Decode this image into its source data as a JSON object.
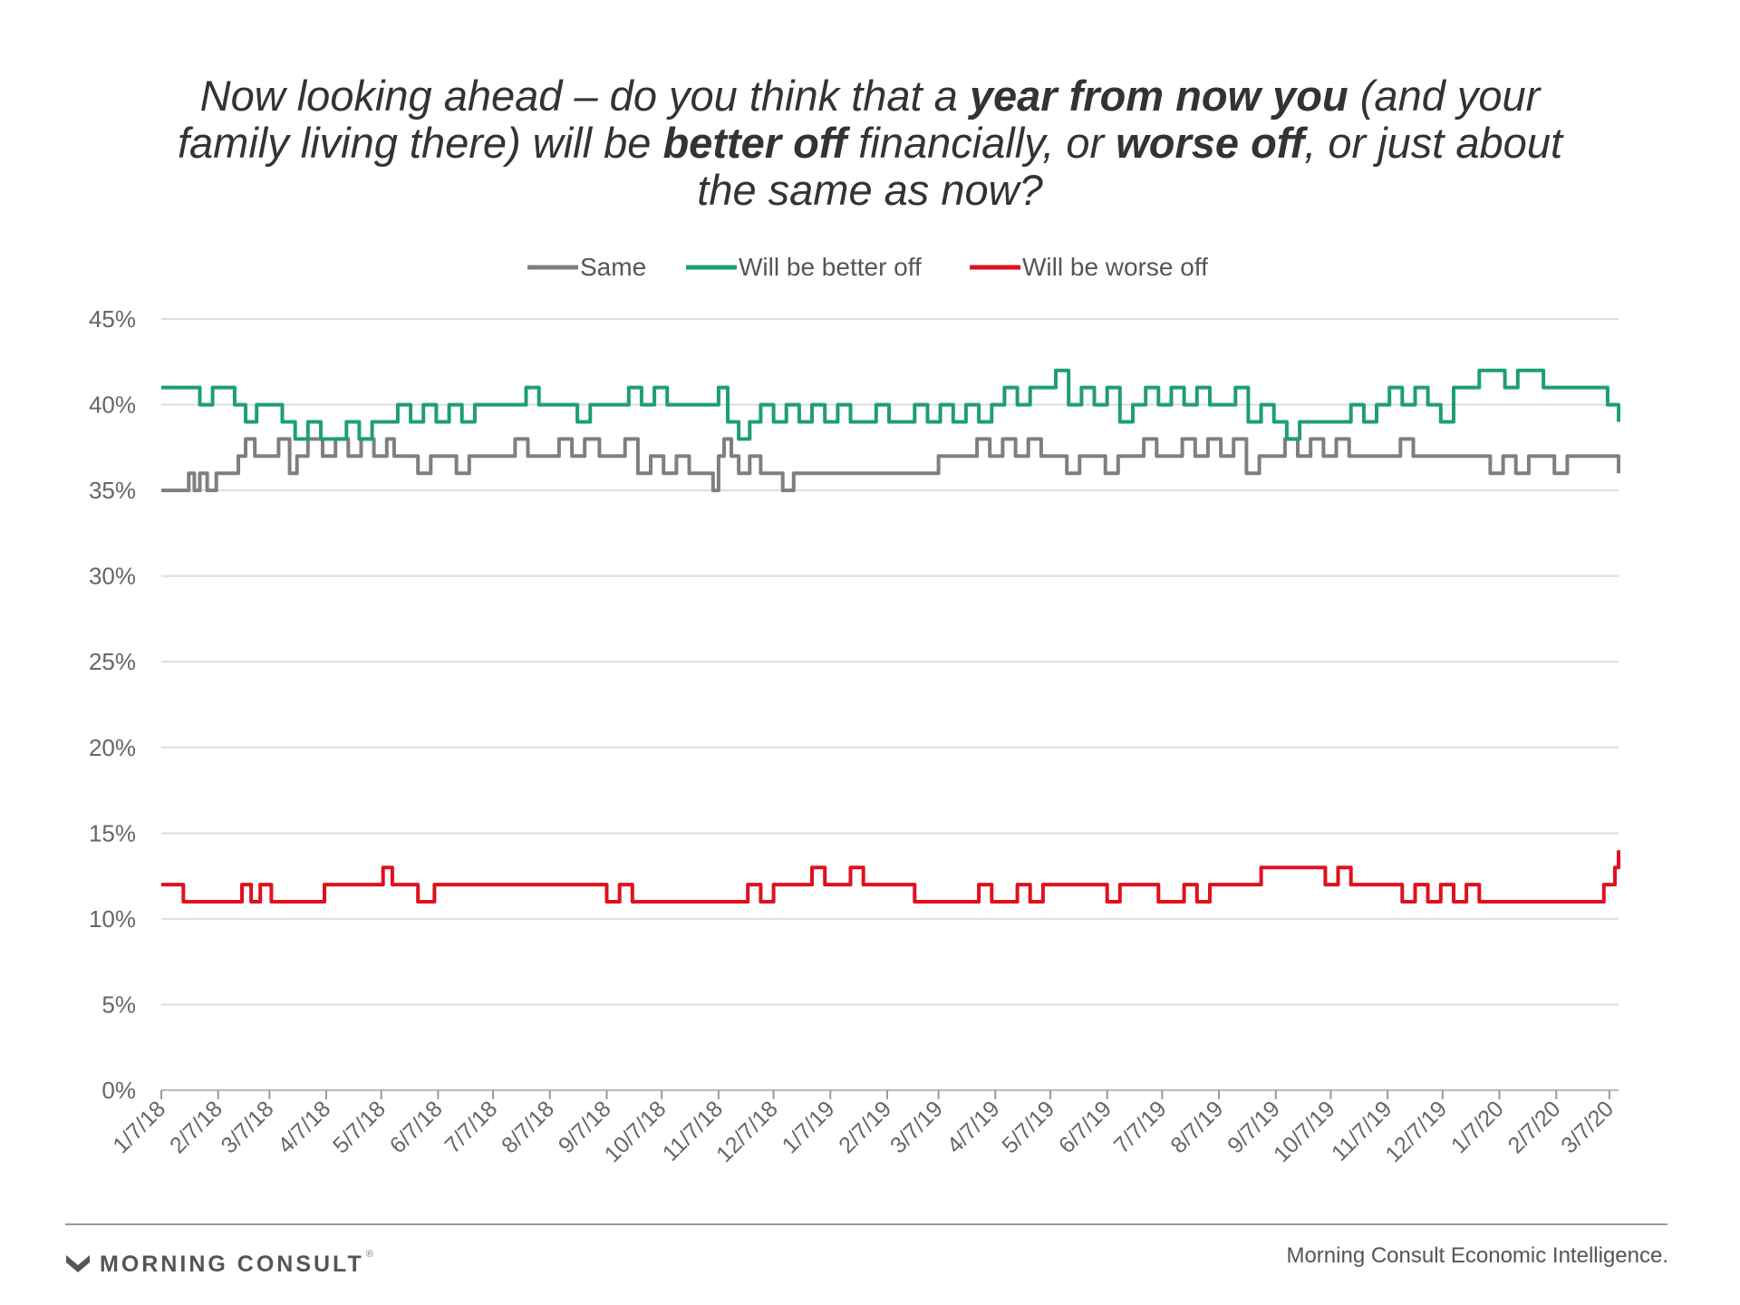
{
  "title_parts": [
    {
      "t": "Now looking ahead – do you think that a ",
      "b": false
    },
    {
      "t": "year from now you",
      "b": true
    },
    {
      "t": " (and your family living there) will be ",
      "b": false
    },
    {
      "t": "better off",
      "b": true
    },
    {
      "t": " financially, or ",
      "b": false
    },
    {
      "t": "worse off",
      "b": true
    },
    {
      "t": ", or just about the same as now?",
      "b": false
    }
  ],
  "footer": {
    "brand": "MORNING CONSULT",
    "source": "Morning Consult Economic Intelligence."
  },
  "colors": {
    "same": "#7f7f7f",
    "better": "#1e9e74",
    "worse": "#e0101e",
    "grid": "#dddddd",
    "axis_text": "#666666"
  },
  "chart_data": {
    "type": "line",
    "title": "Now looking ahead – do you think that a year from now you (and your family living there) will be better off financially, or worse off, or just about the same as now?",
    "legend_position": "top-center",
    "grid": true,
    "ylim": [
      0,
      45
    ],
    "yticks": [
      0,
      5,
      10,
      15,
      20,
      25,
      30,
      35,
      40,
      45
    ],
    "ytick_labels": [
      "0%",
      "5%",
      "10%",
      "15%",
      "20%",
      "25%",
      "30%",
      "35%",
      "40%",
      "45%"
    ],
    "xlim": [
      "2018-01-07",
      "2020-03-12"
    ],
    "xticks": [
      "2018-01-07",
      "2018-02-07",
      "2018-03-07",
      "2018-04-07",
      "2018-05-07",
      "2018-06-07",
      "2018-07-07",
      "2018-08-07",
      "2018-09-07",
      "2018-10-07",
      "2018-11-07",
      "2018-12-07",
      "2019-01-07",
      "2019-02-07",
      "2019-03-07",
      "2019-04-07",
      "2019-05-07",
      "2019-06-07",
      "2019-07-07",
      "2019-08-07",
      "2019-09-07",
      "2019-10-07",
      "2019-11-07",
      "2019-12-07",
      "2020-01-07",
      "2020-02-07",
      "2020-03-07"
    ],
    "xtick_labels": [
      "1/7/18",
      "2/7/18",
      "3/7/18",
      "4/7/18",
      "5/7/18",
      "6/7/18",
      "7/7/18",
      "8/7/18",
      "9/7/18",
      "10/7/18",
      "11/7/18",
      "12/7/18",
      "1/7/19",
      "2/7/19",
      "3/7/19",
      "4/7/19",
      "5/7/19",
      "6/7/19",
      "7/7/19",
      "8/7/19",
      "9/7/19",
      "10/7/19",
      "11/7/19",
      "12/7/19",
      "1/7/20",
      "2/7/20",
      "3/7/20"
    ],
    "series": [
      {
        "name": "Same",
        "color": "#7f7f7f",
        "x": [
          "2018-01-07",
          "2018-01-20",
          "2018-01-22",
          "2018-01-25",
          "2018-01-28",
          "2018-02-01",
          "2018-02-06",
          "2018-02-14",
          "2018-02-18",
          "2018-02-22",
          "2018-02-27",
          "2018-03-06",
          "2018-03-12",
          "2018-03-18",
          "2018-03-22",
          "2018-03-28",
          "2018-04-05",
          "2018-04-12",
          "2018-04-19",
          "2018-04-26",
          "2018-05-03",
          "2018-05-10",
          "2018-05-14",
          "2018-05-20",
          "2018-05-27",
          "2018-06-03",
          "2018-06-10",
          "2018-06-17",
          "2018-06-24",
          "2018-07-01",
          "2018-07-10",
          "2018-07-19",
          "2018-07-26",
          "2018-08-03",
          "2018-08-12",
          "2018-08-19",
          "2018-08-26",
          "2018-09-03",
          "2018-09-10",
          "2018-09-17",
          "2018-09-24",
          "2018-10-01",
          "2018-10-08",
          "2018-10-15",
          "2018-10-22",
          "2018-10-29",
          "2018-11-04",
          "2018-11-07",
          "2018-11-10",
          "2018-11-14",
          "2018-11-18",
          "2018-11-24",
          "2018-11-30",
          "2018-12-06",
          "2018-12-12",
          "2018-12-18",
          "2018-12-24",
          "2019-01-01",
          "2019-01-10",
          "2019-01-20",
          "2019-02-01",
          "2019-02-10",
          "2019-02-20",
          "2019-03-01",
          "2019-03-07",
          "2019-03-14",
          "2019-03-21",
          "2019-03-28",
          "2019-04-04",
          "2019-04-11",
          "2019-04-18",
          "2019-04-25",
          "2019-05-02",
          "2019-05-09",
          "2019-05-16",
          "2019-05-23",
          "2019-05-30",
          "2019-06-06",
          "2019-06-13",
          "2019-06-20",
          "2019-06-27",
          "2019-07-04",
          "2019-07-11",
          "2019-07-18",
          "2019-07-25",
          "2019-08-01",
          "2019-08-08",
          "2019-08-15",
          "2019-08-22",
          "2019-08-29",
          "2019-09-05",
          "2019-09-12",
          "2019-09-19",
          "2019-09-26",
          "2019-10-03",
          "2019-10-10",
          "2019-10-17",
          "2019-10-24",
          "2019-10-31",
          "2019-11-07",
          "2019-11-14",
          "2019-11-21",
          "2019-11-28",
          "2019-12-05",
          "2019-12-12",
          "2019-12-19",
          "2019-12-26",
          "2020-01-02",
          "2020-01-09",
          "2020-01-16",
          "2020-01-23",
          "2020-01-30",
          "2020-02-06",
          "2020-02-13",
          "2020-02-20",
          "2020-02-27",
          "2020-03-05",
          "2020-03-12"
        ],
        "values": [
          35,
          35,
          36,
          35,
          36,
          35,
          36,
          36,
          37,
          38,
          37,
          37,
          38,
          36,
          37,
          38,
          37,
          38,
          37,
          38,
          37,
          38,
          37,
          37,
          36,
          37,
          37,
          36,
          37,
          37,
          37,
          38,
          37,
          37,
          38,
          37,
          38,
          37,
          37,
          38,
          36,
          37,
          36,
          37,
          36,
          36,
          35,
          37,
          38,
          37,
          36,
          37,
          36,
          36,
          35,
          36,
          36,
          36,
          36,
          36,
          36,
          36,
          36,
          36,
          37,
          37,
          37,
          38,
          37,
          38,
          37,
          38,
          37,
          37,
          36,
          37,
          37,
          36,
          37,
          37,
          38,
          37,
          37,
          38,
          37,
          38,
          37,
          38,
          36,
          37,
          37,
          38,
          37,
          38,
          37,
          38,
          37,
          37,
          37,
          37,
          38,
          37,
          37,
          37,
          37,
          37,
          37,
          36,
          37,
          36,
          37,
          37,
          36,
          37,
          37,
          37,
          37,
          36
        ]
      },
      {
        "name": "Will be better off",
        "color": "#1e9e74",
        "x": [
          "2018-01-07",
          "2018-01-14",
          "2018-01-21",
          "2018-01-28",
          "2018-02-04",
          "2018-02-10",
          "2018-02-16",
          "2018-02-22",
          "2018-02-28",
          "2018-03-07",
          "2018-03-14",
          "2018-03-21",
          "2018-03-28",
          "2018-04-04",
          "2018-04-11",
          "2018-04-18",
          "2018-04-25",
          "2018-05-02",
          "2018-05-09",
          "2018-05-16",
          "2018-05-23",
          "2018-05-30",
          "2018-06-06",
          "2018-06-13",
          "2018-06-20",
          "2018-06-27",
          "2018-07-04",
          "2018-07-11",
          "2018-07-18",
          "2018-07-25",
          "2018-08-01",
          "2018-08-08",
          "2018-08-15",
          "2018-08-22",
          "2018-08-29",
          "2018-09-05",
          "2018-09-12",
          "2018-09-19",
          "2018-09-26",
          "2018-10-03",
          "2018-10-10",
          "2018-10-17",
          "2018-10-24",
          "2018-10-31",
          "2018-11-07",
          "2018-11-12",
          "2018-11-18",
          "2018-11-24",
          "2018-11-30",
          "2018-12-07",
          "2018-12-14",
          "2018-12-21",
          "2018-12-28",
          "2019-01-04",
          "2019-01-11",
          "2019-01-18",
          "2019-01-25",
          "2019-02-01",
          "2019-02-08",
          "2019-02-15",
          "2019-02-22",
          "2019-03-01",
          "2019-03-08",
          "2019-03-15",
          "2019-03-22",
          "2019-03-29",
          "2019-04-05",
          "2019-04-12",
          "2019-04-19",
          "2019-04-26",
          "2019-05-03",
          "2019-05-10",
          "2019-05-17",
          "2019-05-24",
          "2019-05-31",
          "2019-06-07",
          "2019-06-14",
          "2019-06-21",
          "2019-06-28",
          "2019-07-05",
          "2019-07-12",
          "2019-07-19",
          "2019-07-26",
          "2019-08-02",
          "2019-08-09",
          "2019-08-16",
          "2019-08-23",
          "2019-08-30",
          "2019-09-06",
          "2019-09-13",
          "2019-09-20",
          "2019-09-27",
          "2019-10-04",
          "2019-10-11",
          "2019-10-18",
          "2019-10-25",
          "2019-11-01",
          "2019-11-08",
          "2019-11-15",
          "2019-11-22",
          "2019-11-29",
          "2019-12-06",
          "2019-12-13",
          "2019-12-20",
          "2019-12-27",
          "2020-01-03",
          "2020-01-10",
          "2020-01-17",
          "2020-01-24",
          "2020-01-31",
          "2020-02-07",
          "2020-02-14",
          "2020-02-21",
          "2020-02-28",
          "2020-03-06",
          "2020-03-12"
        ],
        "values": [
          41,
          41,
          41,
          40,
          41,
          41,
          40,
          39,
          40,
          40,
          39,
          38,
          39,
          38,
          38,
          39,
          38,
          39,
          39,
          40,
          39,
          40,
          39,
          40,
          39,
          40,
          40,
          40,
          40,
          41,
          40,
          40,
          40,
          39,
          40,
          40,
          40,
          41,
          40,
          41,
          40,
          40,
          40,
          40,
          41,
          39,
          38,
          39,
          40,
          39,
          40,
          39,
          40,
          39,
          40,
          39,
          39,
          40,
          39,
          39,
          40,
          39,
          40,
          39,
          40,
          39,
          40,
          41,
          40,
          41,
          41,
          42,
          40,
          41,
          40,
          41,
          39,
          40,
          41,
          40,
          41,
          40,
          41,
          40,
          40,
          41,
          39,
          40,
          39,
          38,
          39,
          39,
          39,
          39,
          40,
          39,
          40,
          41,
          40,
          41,
          40,
          39,
          41,
          41,
          42,
          42,
          41,
          42,
          42,
          41,
          41,
          41,
          41,
          41,
          40,
          39
        ]
      },
      {
        "name": "Will be worse off",
        "color": "#e0101e",
        "x": [
          "2018-01-07",
          "2018-01-13",
          "2018-01-19",
          "2018-01-25",
          "2018-02-01",
          "2018-02-08",
          "2018-02-15",
          "2018-02-20",
          "2018-02-25",
          "2018-03-02",
          "2018-03-08",
          "2018-03-15",
          "2018-03-22",
          "2018-03-29",
          "2018-04-06",
          "2018-04-13",
          "2018-04-20",
          "2018-04-27",
          "2018-05-04",
          "2018-05-08",
          "2018-05-13",
          "2018-05-20",
          "2018-05-27",
          "2018-06-05",
          "2018-06-15",
          "2018-06-25",
          "2018-07-05",
          "2018-07-15",
          "2018-07-25",
          "2018-08-05",
          "2018-08-15",
          "2018-08-25",
          "2018-09-01",
          "2018-09-07",
          "2018-09-14",
          "2018-09-21",
          "2018-09-28",
          "2018-10-05",
          "2018-10-12",
          "2018-10-19",
          "2018-10-26",
          "2018-11-02",
          "2018-11-09",
          "2018-11-16",
          "2018-11-23",
          "2018-11-30",
          "2018-12-07",
          "2018-12-14",
          "2018-12-21",
          "2018-12-28",
          "2019-01-04",
          "2019-01-11",
          "2019-01-18",
          "2019-01-25",
          "2019-02-01",
          "2019-02-08",
          "2019-02-15",
          "2019-02-22",
          "2019-03-01",
          "2019-03-08",
          "2019-03-15",
          "2019-03-22",
          "2019-03-29",
          "2019-04-05",
          "2019-04-12",
          "2019-04-19",
          "2019-04-26",
          "2019-05-03",
          "2019-05-10",
          "2019-05-17",
          "2019-05-24",
          "2019-05-31",
          "2019-06-07",
          "2019-06-14",
          "2019-06-21",
          "2019-06-28",
          "2019-07-05",
          "2019-07-12",
          "2019-07-19",
          "2019-07-26",
          "2019-08-02",
          "2019-08-09",
          "2019-08-16",
          "2019-08-23",
          "2019-08-30",
          "2019-09-06",
          "2019-09-13",
          "2019-09-20",
          "2019-09-27",
          "2019-10-04",
          "2019-10-11",
          "2019-10-18",
          "2019-10-25",
          "2019-11-01",
          "2019-11-08",
          "2019-11-15",
          "2019-11-22",
          "2019-11-29",
          "2019-12-06",
          "2019-12-13",
          "2019-12-20",
          "2019-12-27",
          "2020-01-03",
          "2020-01-10",
          "2020-01-17",
          "2020-01-24",
          "2020-01-31",
          "2020-02-07",
          "2020-02-14",
          "2020-02-21",
          "2020-02-28",
          "2020-03-04",
          "2020-03-08",
          "2020-03-10",
          "2020-03-12"
        ],
        "values": [
          12,
          12,
          11,
          11,
          11,
          11,
          11,
          12,
          11,
          12,
          11,
          11,
          11,
          11,
          12,
          12,
          12,
          12,
          12,
          13,
          12,
          12,
          11,
          12,
          12,
          12,
          12,
          12,
          12,
          12,
          12,
          12,
          12,
          11,
          12,
          11,
          11,
          11,
          11,
          11,
          11,
          11,
          11,
          11,
          12,
          11,
          12,
          12,
          12,
          13,
          12,
          12,
          13,
          12,
          12,
          12,
          12,
          11,
          11,
          11,
          11,
          11,
          12,
          11,
          11,
          12,
          11,
          12,
          12,
          12,
          12,
          12,
          11,
          12,
          12,
          12,
          11,
          11,
          12,
          11,
          12,
          12,
          12,
          12,
          13,
          13,
          13,
          13,
          13,
          12,
          13,
          12,
          12,
          12,
          12,
          11,
          12,
          11,
          12,
          11,
          12,
          11,
          11,
          11,
          11,
          11,
          11,
          11,
          11,
          11,
          11,
          12,
          12,
          13,
          14
        ]
      }
    ]
  }
}
